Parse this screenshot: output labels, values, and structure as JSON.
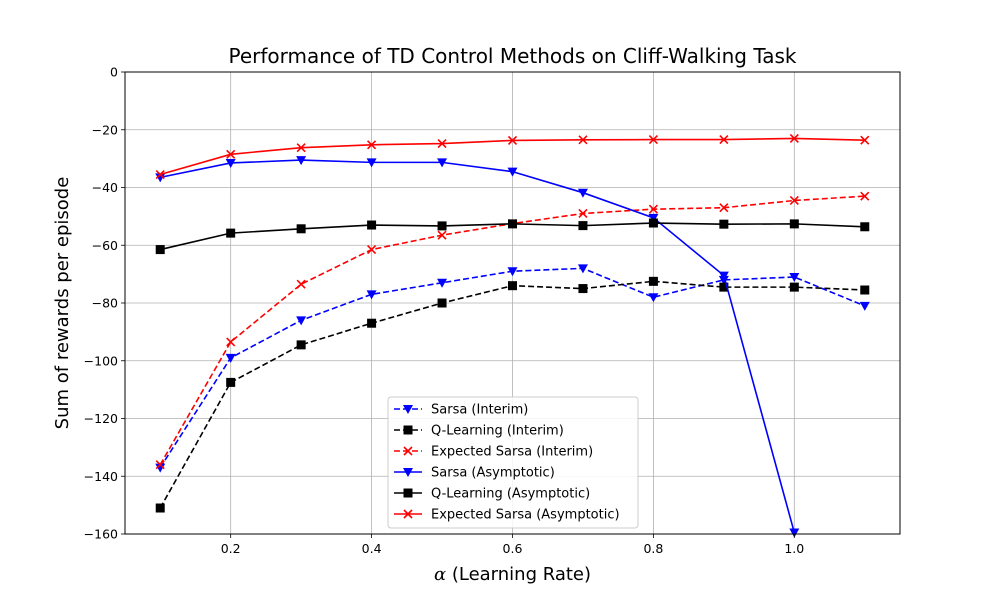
{
  "chart_data": {
    "type": "line",
    "title": "Performance of TD Control Methods on Cliff-Walking Task",
    "xlabel_symbol": "α",
    "xlabel_text": " (Learning Rate)",
    "ylabel": "Sum of rewards per episode",
    "xlim": [
      0.05,
      1.15
    ],
    "ylim": [
      -160,
      0
    ],
    "xticks": [
      0.2,
      0.4,
      0.6,
      0.8,
      1.0
    ],
    "xtick_labels": [
      "0.2",
      "0.4",
      "0.6",
      "0.8",
      "1.0"
    ],
    "yticks": [
      0,
      -20,
      -40,
      -60,
      -80,
      -100,
      -120,
      -140,
      -160
    ],
    "ytick_labels": [
      "0",
      "−20",
      "−40",
      "−60",
      "−80",
      "−100",
      "−120",
      "−140",
      "−160"
    ],
    "grid": true,
    "legend_position": "lower-center",
    "x": [
      0.1,
      0.2,
      0.3,
      0.4,
      0.5,
      0.6,
      0.7,
      0.8,
      0.9,
      1.0,
      1.1
    ],
    "series": [
      {
        "name": "Sarsa (Interim)",
        "color": "#0000ff",
        "dashed": true,
        "marker": "triangle-down",
        "values": [
          -137,
          -99,
          -86,
          -77,
          -73,
          -69,
          -68,
          -78,
          -72,
          -71,
          -81
        ]
      },
      {
        "name": "Q-Learning (Interim)",
        "color": "#000000",
        "dashed": true,
        "marker": "square",
        "values": [
          -151,
          -107.5,
          -94.5,
          -87,
          -80,
          -74,
          -75,
          -72.5,
          -74.5,
          -74.5,
          -75.5
        ]
      },
      {
        "name": "Expected Sarsa (Interim)",
        "color": "#ff0000",
        "dashed": true,
        "marker": "x",
        "values": [
          -136,
          -93.5,
          -73.5,
          -61.5,
          -56.5,
          -52.5,
          -49,
          -47.5,
          -47,
          -44.5,
          -43
        ]
      },
      {
        "name": "Sarsa (Asymptotic)",
        "color": "#0000ff",
        "dashed": false,
        "marker": "triangle-down",
        "values": [
          -36.5,
          -31.5,
          -30.5,
          -31.3,
          -31.3,
          -34.5,
          -41.8,
          -50.5,
          -70.5,
          -159.5,
          null
        ]
      },
      {
        "name": "Q-Learning (Asymptotic)",
        "color": "#000000",
        "dashed": false,
        "marker": "square",
        "values": [
          -61.5,
          -55.8,
          -54.3,
          -53,
          -53.3,
          -52.6,
          -53.2,
          -52.3,
          -52.7,
          -52.6,
          -53.6
        ]
      },
      {
        "name": "Expected Sarsa (Asymptotic)",
        "color": "#ff0000",
        "dashed": false,
        "marker": "x",
        "values": [
          -35.5,
          -28.5,
          -26.2,
          -25.2,
          -24.8,
          -23.7,
          -23.5,
          -23.4,
          -23.4,
          -23,
          -23.6
        ]
      }
    ]
  }
}
